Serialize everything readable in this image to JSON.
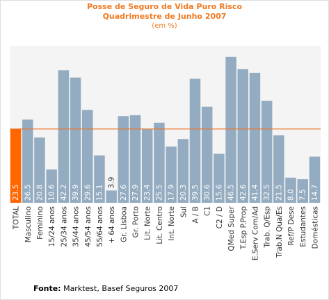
{
  "chart_data": {
    "type": "bar",
    "title": "Posse de Seguro de Vida Puro Risco",
    "subtitle": "Quadrimestre de Junho 2007",
    "unit_label": "(em %)",
    "categories": [
      "TOTAL",
      "Masculino",
      "Feminino",
      "15/24 anos",
      "25/34 anos",
      "35/44 anos",
      "45/54 anos",
      "55/64 anos",
      "+ 64 anos",
      "Gr. Lisboa",
      "Gr. Porto",
      "Lit. Norte",
      "Lit. Centro",
      "Int. Norte",
      "Sul",
      "A / B",
      "C1",
      "C2 / D",
      "QMed Super",
      "T.Esp P.Prop",
      "E.Serv Com/Ad",
      "Trab. Q/Esp",
      "Trab.N Qua/Es",
      "Ref/P Dese",
      "Estudantes",
      "Domésticas"
    ],
    "values": [
      23.5,
      26.5,
      20.8,
      10.6,
      42.2,
      39.9,
      29.6,
      15.1,
      3.9,
      27.6,
      27.9,
      23.4,
      25.5,
      17.9,
      20.3,
      39.5,
      30.6,
      15.6,
      46.5,
      42.6,
      41.4,
      32.5,
      21.5,
      8.0,
      7.5,
      14.7
    ],
    "value_labels": [
      "23.5",
      "26.5",
      "20.8",
      "10.6",
      "42.2",
      "39.9",
      "29.6",
      "15.1",
      "3.9",
      "27.6",
      "27.9",
      "23.4",
      "25.5",
      "17.9",
      "20.3",
      "39.5",
      "30.6",
      "15.6",
      "46.5",
      "42.6",
      "41.4",
      "32.5",
      "21.5",
      "8.0",
      "7.5",
      "14.7"
    ],
    "ylim": [
      0,
      50
    ],
    "reference_line": 23.5,
    "highlight_index": 0,
    "grid": false,
    "colors": {
      "bar": "#94acc1",
      "highlight": "#ff6600",
      "reference_line": "#e8762c",
      "plot_background": "#f4f4f4",
      "value_label": "#ffffff",
      "title": "#ee7a22"
    }
  },
  "footer": {
    "source_label": "Fonte:",
    "source_text": " Marktest, Basef Seguros 2007"
  }
}
